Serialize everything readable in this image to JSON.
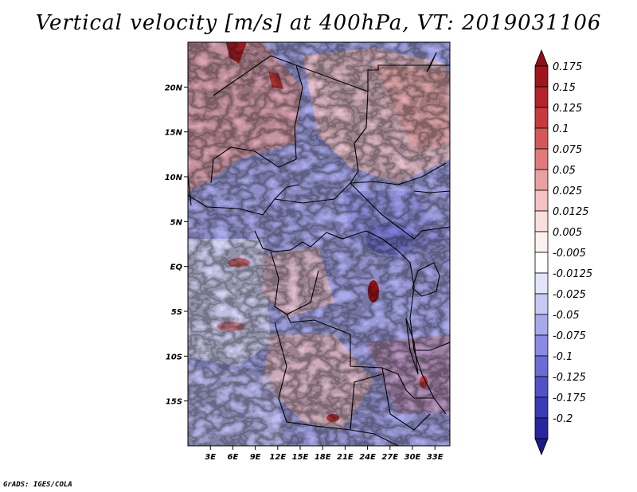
{
  "title": "Vertical velocity [m/s] at 400hPa, VT: 2019031106",
  "credit": "GrADS: IGES/COLA",
  "map": {
    "lon_range": [
      0,
      35
    ],
    "lat_range": [
      -20,
      25
    ],
    "y_ticks": [
      {
        "label": "20N",
        "lat": 20
      },
      {
        "label": "15N",
        "lat": 15
      },
      {
        "label": "10N",
        "lat": 10
      },
      {
        "label": "5N",
        "lat": 5
      },
      {
        "label": "EQ",
        "lat": 0
      },
      {
        "label": "5S",
        "lat": -5
      },
      {
        "label": "10S",
        "lat": -10
      },
      {
        "label": "15S",
        "lat": -15
      }
    ],
    "x_ticks": [
      {
        "label": "3E",
        "lon": 3
      },
      {
        "label": "6E",
        "lon": 6
      },
      {
        "label": "9E",
        "lon": 9
      },
      {
        "label": "12E",
        "lon": 12
      },
      {
        "label": "15E",
        "lon": 15
      },
      {
        "label": "18E",
        "lon": 18
      },
      {
        "label": "21E",
        "lon": 21
      },
      {
        "label": "24E",
        "lon": 24
      },
      {
        "label": "27E",
        "lon": 27
      },
      {
        "label": "30E",
        "lon": 30
      },
      {
        "label": "33E",
        "lon": 33
      }
    ]
  },
  "colorbar": {
    "levels": [
      {
        "label": "0.175",
        "color": "#a0151c"
      },
      {
        "label": "0.15",
        "color": "#b5222a"
      },
      {
        "label": "0.125",
        "color": "#c83a3c"
      },
      {
        "label": "0.1",
        "color": "#d6575a"
      },
      {
        "label": "0.075",
        "color": "#e07a7c"
      },
      {
        "label": "0.05",
        "color": "#eba0a0"
      },
      {
        "label": "0.025",
        "color": "#f3c2c2"
      },
      {
        "label": "0.0125",
        "color": "#f9dede"
      },
      {
        "label": "0.005",
        "color": "#fdf0f0"
      },
      {
        "label": "-0.005",
        "color": "#ffffff"
      },
      {
        "label": "-0.0125",
        "color": "#e4e4fa"
      },
      {
        "label": "-0.025",
        "color": "#c8c8f4"
      },
      {
        "label": "-0.05",
        "color": "#a8a8ec"
      },
      {
        "label": "-0.075",
        "color": "#8a8ae2"
      },
      {
        "label": "-0.1",
        "color": "#6c6cd6"
      },
      {
        "label": "-0.125",
        "color": "#5252c8"
      },
      {
        "label": "-0.175",
        "color": "#3a3ab6"
      },
      {
        "label": "-0.2",
        "color": "#2626a0"
      }
    ],
    "top_arrow_color": "#8e1016",
    "bottom_arrow_color": "#1a1a8c"
  }
}
